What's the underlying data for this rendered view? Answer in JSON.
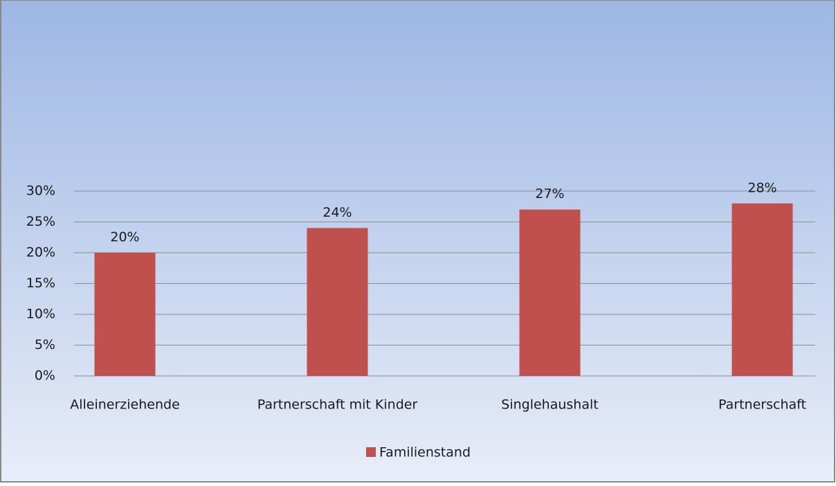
{
  "chart_data": {
    "type": "bar",
    "categories": [
      "Alleinerziehende",
      "Partnerschaft mit Kinder",
      "Singlehaushalt",
      "Partnerschaft"
    ],
    "series": [
      {
        "name": "Familienstand",
        "color": "#c0504d",
        "values": [
          20,
          24,
          27,
          28
        ],
        "value_labels": [
          "20%",
          "24%",
          "27%",
          "28%"
        ]
      }
    ],
    "ylim": [
      0,
      30
    ],
    "yticks": [
      {
        "value": 0,
        "label": "0%"
      },
      {
        "value": 5,
        "label": "5%"
      },
      {
        "value": 10,
        "label": "10%"
      },
      {
        "value": 15,
        "label": "15%"
      },
      {
        "value": 20,
        "label": "20%"
      },
      {
        "value": 25,
        "label": "25%"
      },
      {
        "value": 30,
        "label": "30%"
      }
    ],
    "grid": true,
    "legend": "bottom"
  }
}
